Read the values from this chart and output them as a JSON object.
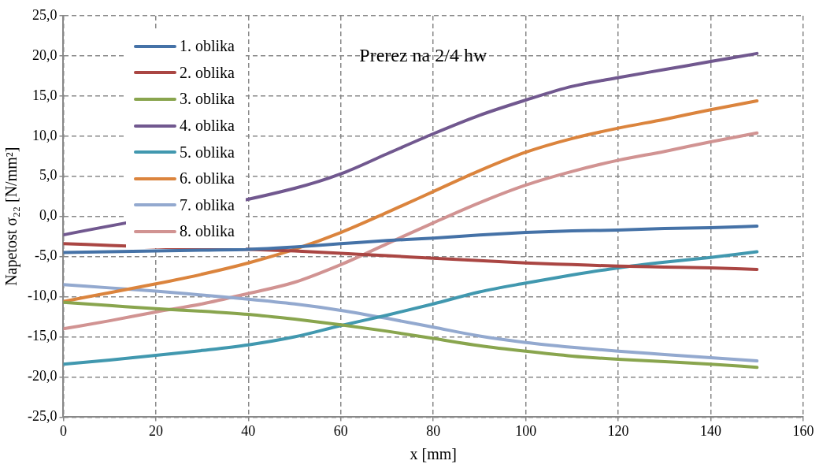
{
  "chart_data": {
    "type": "line",
    "title": "Prerez na 2/4 hw",
    "xlabel": "x [mm]",
    "ylabel": "Napetost σ₂₂ [N/mm²]",
    "x": [
      0,
      10,
      20,
      30,
      40,
      50,
      60,
      70,
      80,
      90,
      100,
      110,
      120,
      130,
      140,
      150
    ],
    "series": [
      {
        "name": "1. oblika",
        "color": "#4572a7",
        "values": [
          -4.5,
          -4.4,
          -4.3,
          -4.2,
          -4.1,
          -3.8,
          -3.4,
          -3.0,
          -2.7,
          -2.3,
          -2.0,
          -1.8,
          -1.7,
          -1.5,
          -1.4,
          -1.2
        ]
      },
      {
        "name": "2. oblika",
        "color": "#aa4643",
        "values": [
          -3.4,
          -3.6,
          -3.8,
          -4.0,
          -4.1,
          -4.3,
          -4.6,
          -4.9,
          -5.2,
          -5.5,
          -5.8,
          -6.0,
          -6.2,
          -6.3,
          -6.4,
          -6.6
        ]
      },
      {
        "name": "3. oblika",
        "color": "#89a54e",
        "values": [
          -10.7,
          -11.1,
          -11.5,
          -11.8,
          -12.2,
          -12.8,
          -13.5,
          -14.3,
          -15.2,
          -16.1,
          -16.8,
          -17.4,
          -17.8,
          -18.1,
          -18.4,
          -18.8
        ]
      },
      {
        "name": "4. oblika",
        "color": "#71588f",
        "values": [
          -2.3,
          null,
          null,
          null,
          null,
          3.5,
          5.3,
          7.8,
          10.3,
          12.6,
          14.5,
          16.2,
          17.3,
          18.3,
          19.3,
          20.3
        ]
      },
      {
        "name": "5. oblika",
        "color": "#4198af",
        "values": [
          -18.4,
          -17.9,
          -17.3,
          -16.7,
          -16.0,
          -15.0,
          -13.6,
          -12.3,
          -10.9,
          -9.4,
          -8.3,
          -7.3,
          -6.4,
          -5.7,
          -5.1,
          -4.4
        ]
      },
      {
        "name": "6. oblika",
        "color": "#db843d",
        "values": [
          -10.6,
          -9.5,
          -8.4,
          -7.2,
          -5.8,
          -4.1,
          -2.0,
          0.5,
          3.1,
          5.7,
          8.0,
          9.7,
          11.0,
          12.1,
          13.3,
          14.4
        ]
      },
      {
        "name": "7. oblika",
        "color": "#93a9cf",
        "values": [
          -8.5,
          -8.9,
          -9.3,
          -9.8,
          -10.3,
          -10.9,
          -11.7,
          -12.7,
          -13.8,
          -14.9,
          -15.7,
          -16.3,
          -16.8,
          -17.2,
          -17.6,
          -18.0
        ]
      },
      {
        "name": "8. oblika",
        "color": "#d19392",
        "values": [
          -14.0,
          -13.0,
          -11.9,
          -10.9,
          -9.6,
          -8.2,
          -6.0,
          -3.4,
          -0.8,
          1.7,
          3.9,
          5.6,
          7.0,
          8.1,
          9.3,
          10.4
        ]
      }
    ],
    "xlim": [
      0,
      160
    ],
    "xticks": [
      0,
      20,
      40,
      60,
      80,
      100,
      120,
      140,
      160
    ],
    "ylim": [
      -25,
      25
    ],
    "yticks": [
      {
        "value": -25,
        "label": "-25,0"
      },
      {
        "value": -20,
        "label": "-20,0"
      },
      {
        "value": -15,
        "label": "-15,0"
      },
      {
        "value": -10,
        "label": "-10,0"
      },
      {
        "value": -5,
        "label": "-5,0"
      },
      {
        "value": 0,
        "label": "0,0"
      },
      {
        "value": 5,
        "label": "5,0"
      },
      {
        "value": 10,
        "label": "10,0"
      },
      {
        "value": 15,
        "label": "15,0"
      },
      {
        "value": 20,
        "label": "20,0"
      },
      {
        "value": 25,
        "label": "25,0"
      }
    ],
    "grid": true,
    "legend": "top left",
    "marker": "none",
    "line_style": "solid"
  }
}
